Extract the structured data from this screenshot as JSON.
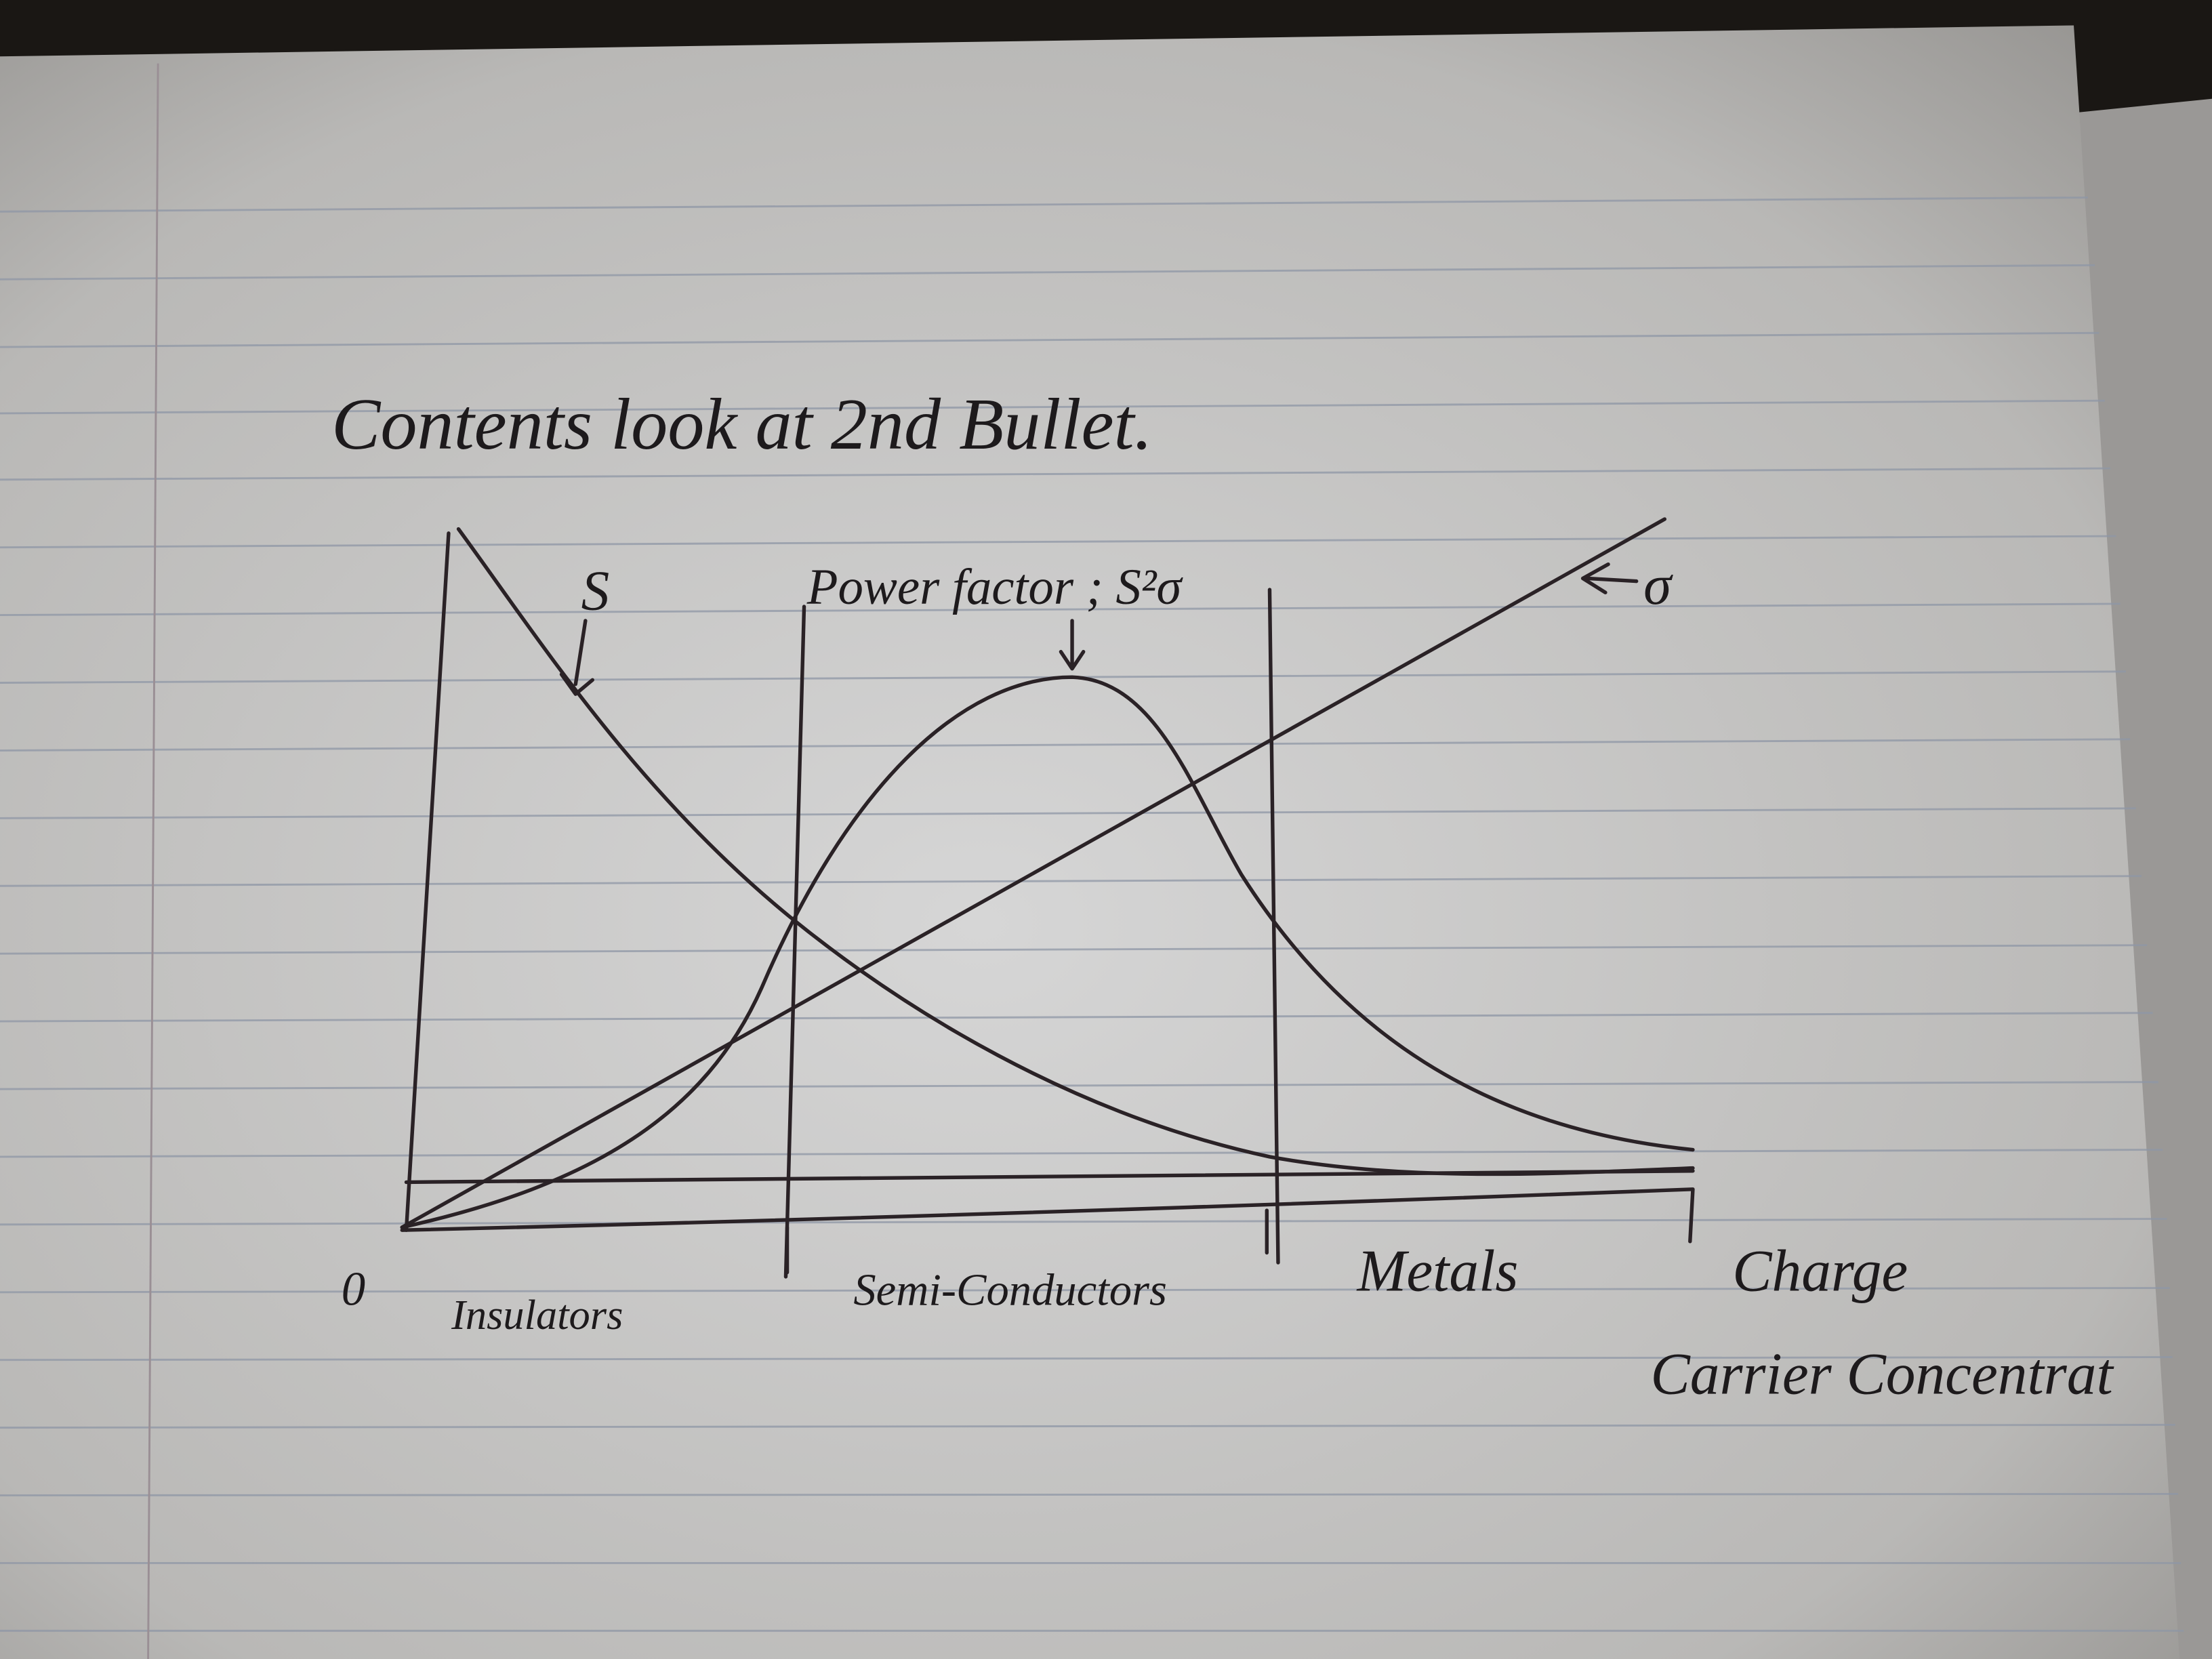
{
  "title": "Contents look at 2nd Bullet.",
  "sketch": {
    "labels": {
      "s": "S",
      "power_factor": "Power factor ; S²σ",
      "sigma": "σ",
      "origin": "0"
    },
    "regions": [
      "Insulators",
      "Semi-Conductors",
      "Metals"
    ],
    "x_axis_label": [
      "Charge",
      "Carrier Concentrat"
    ]
  }
}
